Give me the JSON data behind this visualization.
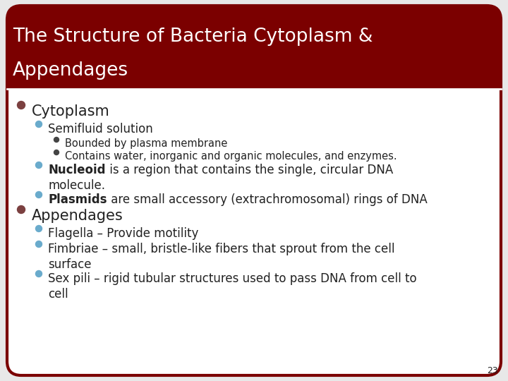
{
  "title_line1": "The Structure of Bacteria Cytoplasm &",
  "title_line2": "Appendages",
  "title_bg_color": "#7B0000",
  "title_text_color": "#FFFFFF",
  "slide_bg_color": "#E8E8E8",
  "border_color": "#7B0000",
  "slide_number": "23",
  "body_bg_color": "#FFFFFF",
  "text_color": "#222222",
  "bullet_l1_color": "#7B4040",
  "bullet_l2_color": "#6AABCC",
  "bullet_l3_color": "#444444",
  "title_fontsize": 19,
  "fs_l1": 15,
  "fs_l2": 12,
  "fs_l3": 10.5,
  "content": [
    {
      "level": 1,
      "text": "Cytoplasm"
    },
    {
      "level": 2,
      "text": "Semifluid solution"
    },
    {
      "level": 3,
      "text": "Bounded by plasma membrane"
    },
    {
      "level": 3,
      "text": "Contains water, inorganic and organic molecules, and enzymes."
    },
    {
      "level": 2,
      "text_parts": [
        {
          "text": "Nucleoid",
          "bold": true
        },
        {
          "text": " is a region that contains the single, circular DNA",
          "bold": false
        }
      ],
      "line2": "molecule."
    },
    {
      "level": 2,
      "text_parts": [
        {
          "text": "Plasmids",
          "bold": true
        },
        {
          "text": " are small accessory (extrachromosomal) rings of DNA",
          "bold": false
        }
      ]
    },
    {
      "level": 1,
      "text": "Appendages"
    },
    {
      "level": 2,
      "text": "Flagella – Provide motility"
    },
    {
      "level": 2,
      "text": "Fimbriae – small, bristle-like fibers that sprout from the cell",
      "line2": "surface"
    },
    {
      "level": 2,
      "text": "Sex pili – rigid tubular structures used to pass DNA from cell to",
      "line2": "cell"
    }
  ]
}
